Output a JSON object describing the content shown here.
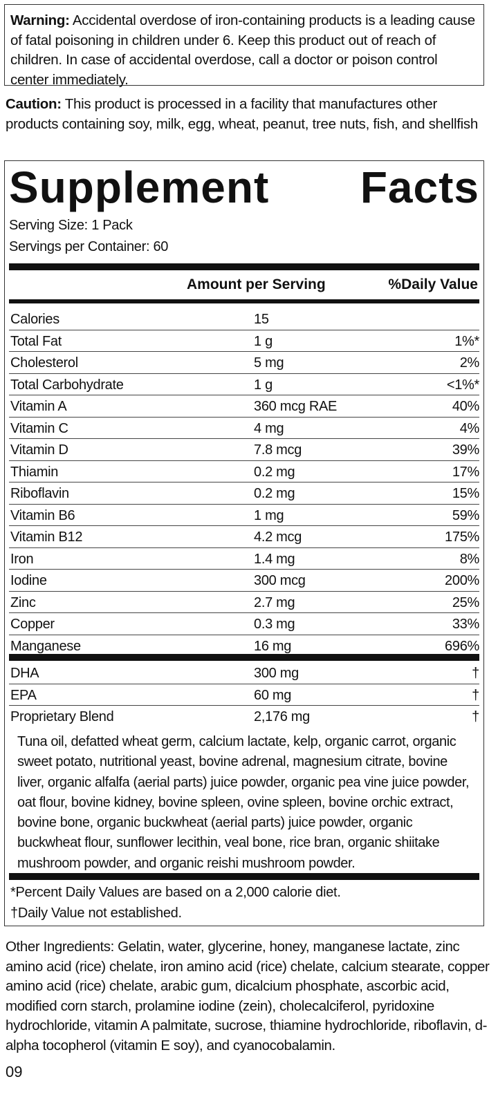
{
  "warning": {
    "label": "Warning:",
    "text": " Accidental overdose of iron-containing products is a leading cause of fatal poisoning in children under 6. Keep this product out of reach of children. In case of accidental overdose, call a doctor or poison control center immediately."
  },
  "caution": {
    "label": "Caution:",
    "text": " This product is processed in a facility that manufactures other products containing soy, milk, egg, wheat, peanut, tree nuts, fish, and shellfish"
  },
  "facts": {
    "title_word1": "Supplement",
    "title_word2": "Facts",
    "serving_size": "Serving Size: 1 Pack",
    "servings_per_container": "Servings per Container: 60",
    "col_amount": "Amount per Serving",
    "col_dv": "%Daily Value",
    "nutrients": [
      {
        "name": "Calories",
        "amount": "15",
        "dv": ""
      },
      {
        "name": "Total Fat",
        "amount": "1 g",
        "dv": "1%*"
      },
      {
        "name": "Cholesterol",
        "amount": "5 mg",
        "dv": "2%"
      },
      {
        "name": "Total Carbohydrate",
        "amount": "1 g",
        "dv": "<1%*"
      },
      {
        "name": "Vitamin A",
        "amount": "360 mcg RAE",
        "dv": "40%"
      },
      {
        "name": "Vitamin C",
        "amount": "4 mg",
        "dv": "4%"
      },
      {
        "name": "Vitamin D",
        "amount": "7.8 mcg",
        "dv": "39%"
      },
      {
        "name": "Thiamin",
        "amount": "0.2 mg",
        "dv": "17%"
      },
      {
        "name": "Riboflavin",
        "amount": "0.2 mg",
        "dv": "15%"
      },
      {
        "name": "Vitamin B6",
        "amount": "1 mg",
        "dv": "59%"
      },
      {
        "name": "Vitamin B12",
        "amount": "4.2 mcg",
        "dv": "175%"
      },
      {
        "name": "Iron",
        "amount": "1.4 mg",
        "dv": "8%"
      },
      {
        "name": "Iodine",
        "amount": "300 mcg",
        "dv": "200%"
      },
      {
        "name": "Zinc",
        "amount": "2.7 mg",
        "dv": "25%"
      },
      {
        "name": "Copper",
        "amount": "0.3 mg",
        "dv": "33%"
      },
      {
        "name": "Manganese",
        "amount": "16 mg",
        "dv": "696%"
      }
    ],
    "others": [
      {
        "name": "DHA",
        "amount": "300 mg",
        "dv": "†"
      },
      {
        "name": "EPA",
        "amount": "60 mg",
        "dv": "†"
      },
      {
        "name": "Proprietary Blend",
        "amount": "2,176 mg",
        "dv": "†"
      }
    ],
    "blend_description": "Tuna oil, defatted wheat germ, calcium lactate, kelp, organic carrot, organic sweet potato, nutritional yeast, bovine adrenal, magnesium citrate, bovine liver, organic alfalfa (aerial parts) juice powder, organic pea vine juice powder, oat flour, bovine kidney, bovine spleen, ovine spleen, bovine orchic extract, bovine bone, organic buckwheat (aerial parts) juice powder, organic buckwheat flour, sunflower lecithin, veal bone, rice bran, organic shiitake mushroom powder, and organic reishi mushroom powder.",
    "footnote_dv": "*Percent Daily Values are based on a 2,000 calorie diet.",
    "footnote_dagger": "†Daily Value not established."
  },
  "other_ingredients": "Other Ingredients: Gelatin, water, glycerine, honey, manganese lactate, zinc amino acid (rice) chelate, iron amino acid (rice) chelate, calcium stearate, copper amino acid (rice) chelate, arabic gum, dicalcium phosphate, ascorbic acid, modified corn starch, prolamine iodine (zein), cholecalciferol, pyridoxine hydrochloride, vitamin A palmitate, sucrose, thiamine hydrochloride, riboflavin, d-alpha tocopherol (vitamin E soy), and cyanocobalamin.",
  "page_number": "09"
}
